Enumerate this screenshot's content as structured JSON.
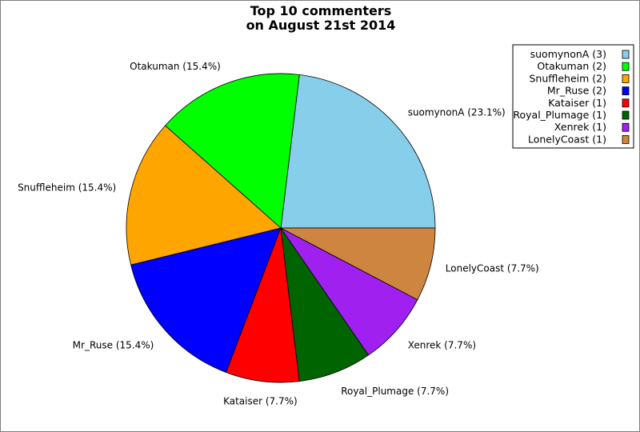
{
  "chart_data": {
    "type": "pie",
    "title_lines": [
      "Top 10 commenters",
      "on August 21st 2014"
    ],
    "slices": [
      {
        "name": "suomynonA",
        "value": 3,
        "label": "suomynonA (23.1%)",
        "legend": "suomynonA (3)",
        "color": "#87CEEB"
      },
      {
        "name": "Otakuman",
        "value": 2,
        "label": "Otakuman (15.4%)",
        "legend": "Otakuman (2)",
        "color": "#00FF00"
      },
      {
        "name": "Snuffleheim",
        "value": 2,
        "label": "Snuffleheim (15.4%)",
        "legend": "Snuffleheim (2)",
        "color": "#FFA500"
      },
      {
        "name": "Mr_Ruse",
        "value": 2,
        "label": "Mr_Ruse (15.4%)",
        "legend": "Mr_Ruse (2)",
        "color": "#0000FF"
      },
      {
        "name": "Kataiser",
        "value": 1,
        "label": "Kataiser (7.7%)",
        "legend": "Kataiser (1)",
        "color": "#FF0000"
      },
      {
        "name": "Royal_Plumage",
        "value": 1,
        "label": "Royal_Plumage (7.7%)",
        "legend": "Royal_Plumage (1)",
        "color": "#006400"
      },
      {
        "name": "Xenrek",
        "value": 1,
        "label": "Xenrek (7.7%)",
        "legend": "Xenrek (1)",
        "color": "#A020F0"
      },
      {
        "name": "LonelyCoast",
        "value": 1,
        "label": "LonelyCoast (7.7%)",
        "legend": "LonelyCoast (1)",
        "color": "#CD853F"
      }
    ],
    "legend_position": "top-right"
  }
}
